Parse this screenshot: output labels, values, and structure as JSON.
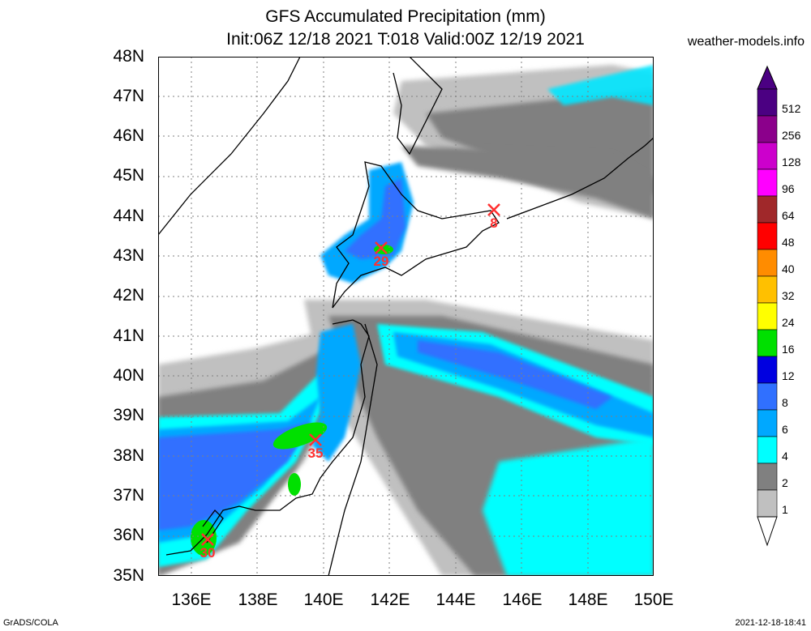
{
  "header": {
    "title": "GFS Accumulated Precipitation (mm)",
    "subtitle": "Init:06Z 12/18 2021 T:018 Valid:00Z 12/19 2021",
    "site": "weather-models.info"
  },
  "footer": {
    "left": "GrADS/COLA",
    "right": "2021-12-18-18:41"
  },
  "axes": {
    "lat_labels": [
      "48N",
      "47N",
      "46N",
      "45N",
      "44N",
      "43N",
      "42N",
      "41N",
      "40N",
      "39N",
      "38N",
      "37N",
      "36N",
      "35N"
    ],
    "lon_labels": [
      "136E",
      "138E",
      "140E",
      "142E",
      "144E",
      "146E",
      "148E",
      "150E"
    ]
  },
  "legend": {
    "colorbar": [
      {
        "label": "512",
        "color": "#4b0082"
      },
      {
        "label": "256",
        "color": "#8b008b"
      },
      {
        "label": "128",
        "color": "#cc00cc"
      },
      {
        "label": "96",
        "color": "#ff00ff"
      },
      {
        "label": "64",
        "color": "#a0282a"
      },
      {
        "label": "48",
        "color": "#ff0000"
      },
      {
        "label": "40",
        "color": "#ff8c00"
      },
      {
        "label": "32",
        "color": "#ffc000"
      },
      {
        "label": "24",
        "color": "#ffff00"
      },
      {
        "label": "16",
        "color": "#00e000"
      },
      {
        "label": "12",
        "color": "#0000e0"
      },
      {
        "label": "8",
        "color": "#3070ff"
      },
      {
        "label": "6",
        "color": "#00a8ff"
      },
      {
        "label": "4",
        "color": "#00ffff"
      },
      {
        "label": "2",
        "color": "#808080"
      },
      {
        "label": "1",
        "color": "#c0c0c0"
      }
    ]
  },
  "markers": [
    {
      "label": "8",
      "lon": 145.2,
      "lat": 44.1
    },
    {
      "label": "29",
      "lon": 141.8,
      "lat": 43.2
    },
    {
      "label": "35",
      "lon": 139.8,
      "lat": 38.4
    },
    {
      "label": "30",
      "lon": 136.5,
      "lat": 35.9
    }
  ],
  "colors": {
    "background": "#ffffff",
    "coastline": "#000000",
    "gridline": "#808080",
    "marker": "#ff3030"
  }
}
